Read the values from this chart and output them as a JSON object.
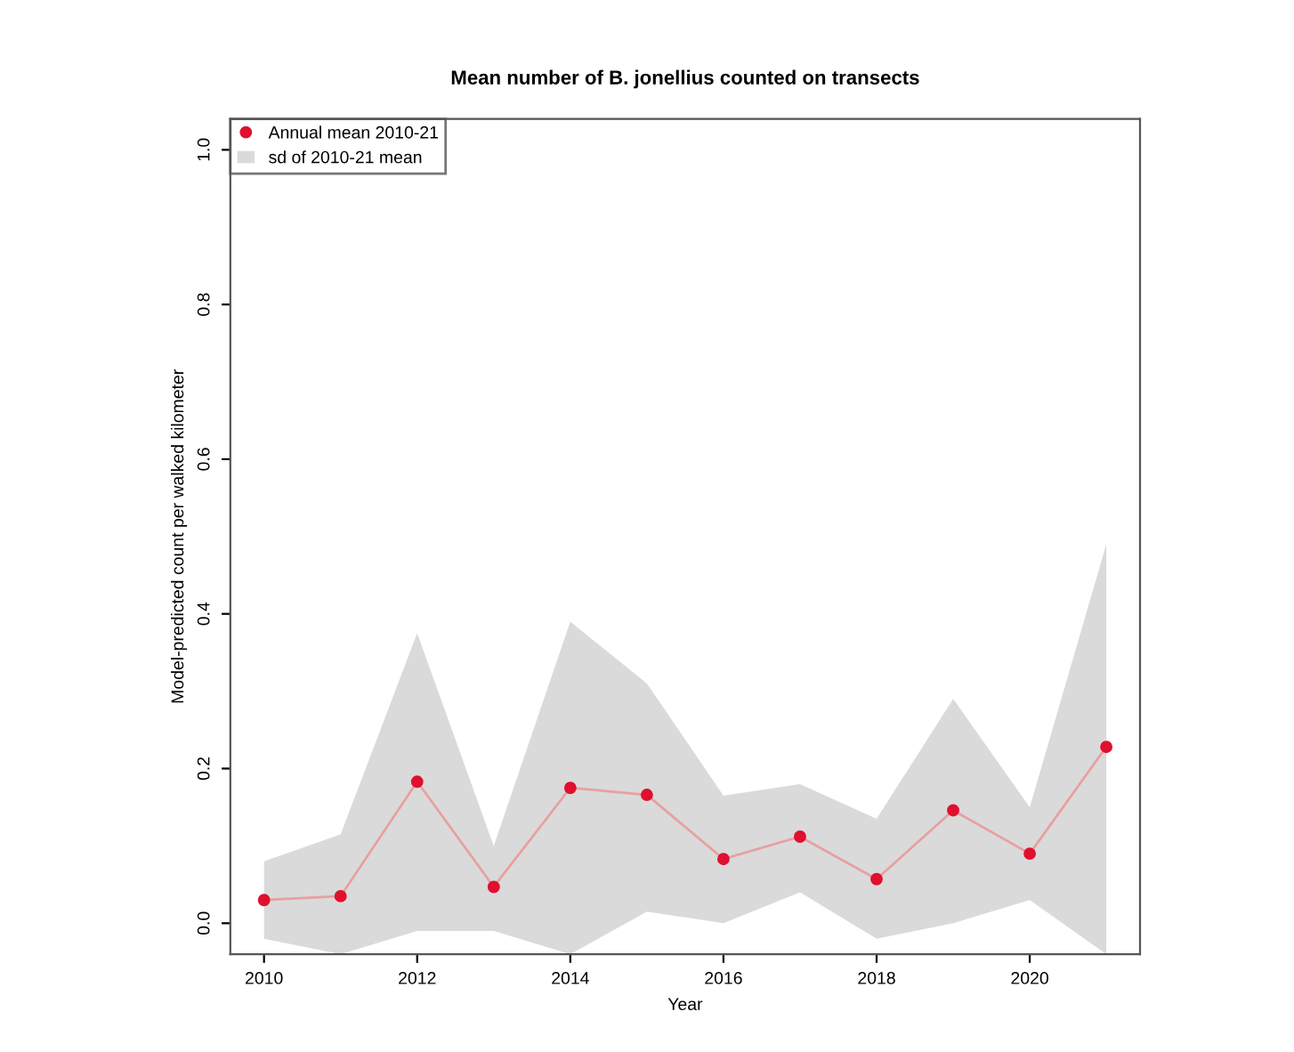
{
  "chart_data": {
    "type": "line",
    "title": "Mean number of B. jonellius counted on transects",
    "xlabel": "Year",
    "ylabel": "Model-predicted count per walked kilometer",
    "x": [
      2010,
      2011,
      2012,
      2013,
      2014,
      2015,
      2016,
      2017,
      2018,
      2019,
      2020,
      2021
    ],
    "series": [
      {
        "name": "Annual mean 2010-21",
        "color": "#e0102f",
        "values": [
          0.03,
          0.035,
          0.183,
          0.047,
          0.175,
          0.166,
          0.083,
          0.112,
          0.057,
          0.146,
          0.09,
          0.228
        ],
        "upper": [
          0.08,
          0.115,
          0.375,
          0.1,
          0.39,
          0.31,
          0.165,
          0.18,
          0.135,
          0.29,
          0.15,
          0.49
        ],
        "lower": [
          -0.02,
          -0.04,
          -0.01,
          -0.01,
          -0.04,
          0.015,
          0.0,
          0.04,
          -0.02,
          0.0,
          0.03,
          -0.04
        ]
      },
      {
        "name": "sd of 2010-21 mean",
        "type": "area",
        "color": "#dadada",
        "values": [
          null,
          null,
          null,
          null,
          null,
          null,
          null,
          null,
          null,
          null,
          null,
          null
        ]
      }
    ],
    "xlim": [
      2009.56,
      2021.44
    ],
    "ylim": [
      -0.04,
      1.04
    ],
    "xticks": [
      2010,
      2012,
      2014,
      2016,
      2018,
      2020
    ],
    "yticks": [
      {
        "value": 0,
        "label": "0.0"
      },
      0.2,
      0.4,
      0.6,
      0.8,
      {
        "value": 1,
        "label": "1.0"
      }
    ],
    "marker": "circle",
    "line_style": "solid",
    "grid": false,
    "legend": "top left"
  }
}
